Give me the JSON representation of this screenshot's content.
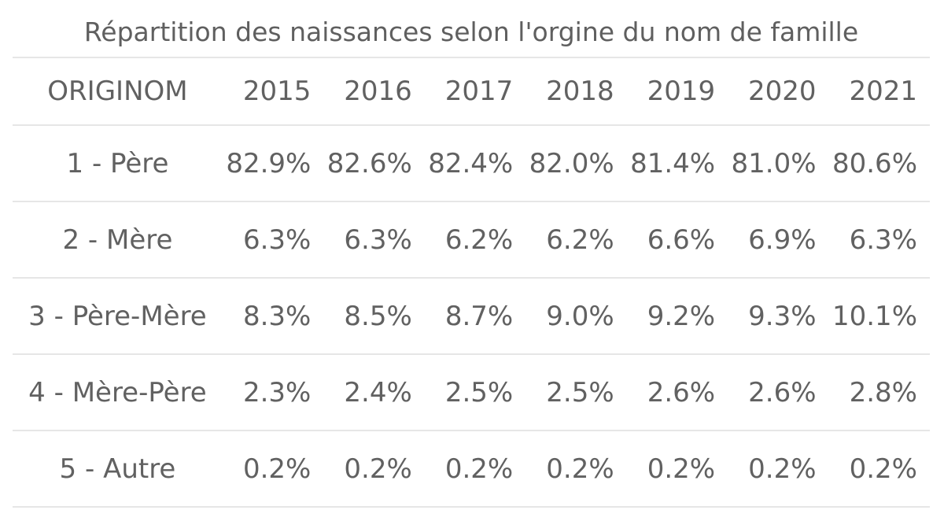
{
  "chart_data": {
    "type": "table",
    "title": "Répartition des naissances selon l'orgine du nom de famille",
    "columns": [
      "ORIGINOM",
      "2015",
      "2016",
      "2017",
      "2018",
      "2019",
      "2020",
      "2021"
    ],
    "rows": [
      {
        "label": "1 - Père",
        "values": [
          "82.9%",
          "82.6%",
          "82.4%",
          "82.0%",
          "81.4%",
          "81.0%",
          "80.6%"
        ]
      },
      {
        "label": "2 - Mère",
        "values": [
          "6.3%",
          "6.3%",
          "6.2%",
          "6.2%",
          "6.6%",
          "6.9%",
          "6.3%"
        ]
      },
      {
        "label": "3 - Père-Mère",
        "values": [
          "8.3%",
          "8.5%",
          "8.7%",
          "9.0%",
          "9.2%",
          "9.3%",
          "10.1%"
        ]
      },
      {
        "label": "4 - Mère-Père",
        "values": [
          "2.3%",
          "2.4%",
          "2.5%",
          "2.5%",
          "2.6%",
          "2.6%",
          "2.8%"
        ]
      },
      {
        "label": "5 - Autre",
        "values": [
          "0.2%",
          "0.2%",
          "0.2%",
          "0.2%",
          "0.2%",
          "0.2%",
          "0.2%"
        ]
      }
    ]
  }
}
